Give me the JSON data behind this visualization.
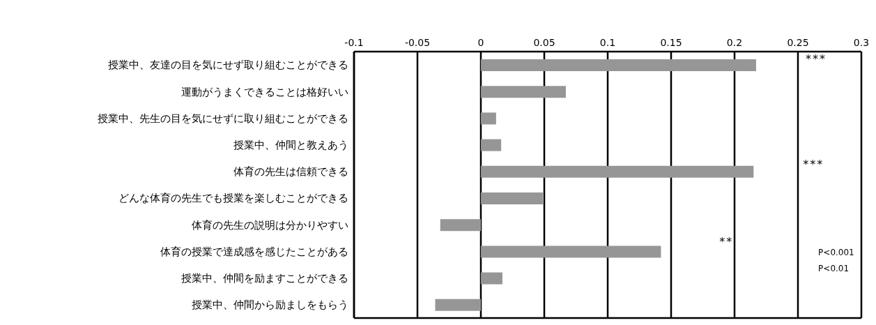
{
  "chart_data": {
    "type": "bar",
    "orientation": "horizontal",
    "categories": [
      "授業中、友達の目を気にせず取り組むことができる",
      "運動がうまくできることは格好いい",
      "授業中、先生の目を気にせずに取り組むことができる",
      "授業中、仲間と教えあう",
      "体育の先生は信頼できる",
      "どんな体育の先生でも授業を楽しむことができる",
      "体育の先生の説明は分かりやすい",
      "体育の授業で達成感を感じたことがある",
      "授業中、仲間を励ますことができる",
      "授業中、仲間から励ましをもらう"
    ],
    "values": [
      0.217,
      0.067,
      0.012,
      0.016,
      0.215,
      0.049,
      -0.032,
      0.142,
      0.017,
      -0.036
    ],
    "color": "#969696",
    "xlim": [
      -0.1,
      0.3
    ],
    "xticks": [
      -0.1,
      -0.05,
      0,
      0.05,
      0.1,
      0.15,
      0.2,
      0.25,
      0.3
    ],
    "grid": "x",
    "annotations": [
      "***",
      "***",
      "**",
      "P<0.001",
      "P<0.01"
    ]
  }
}
